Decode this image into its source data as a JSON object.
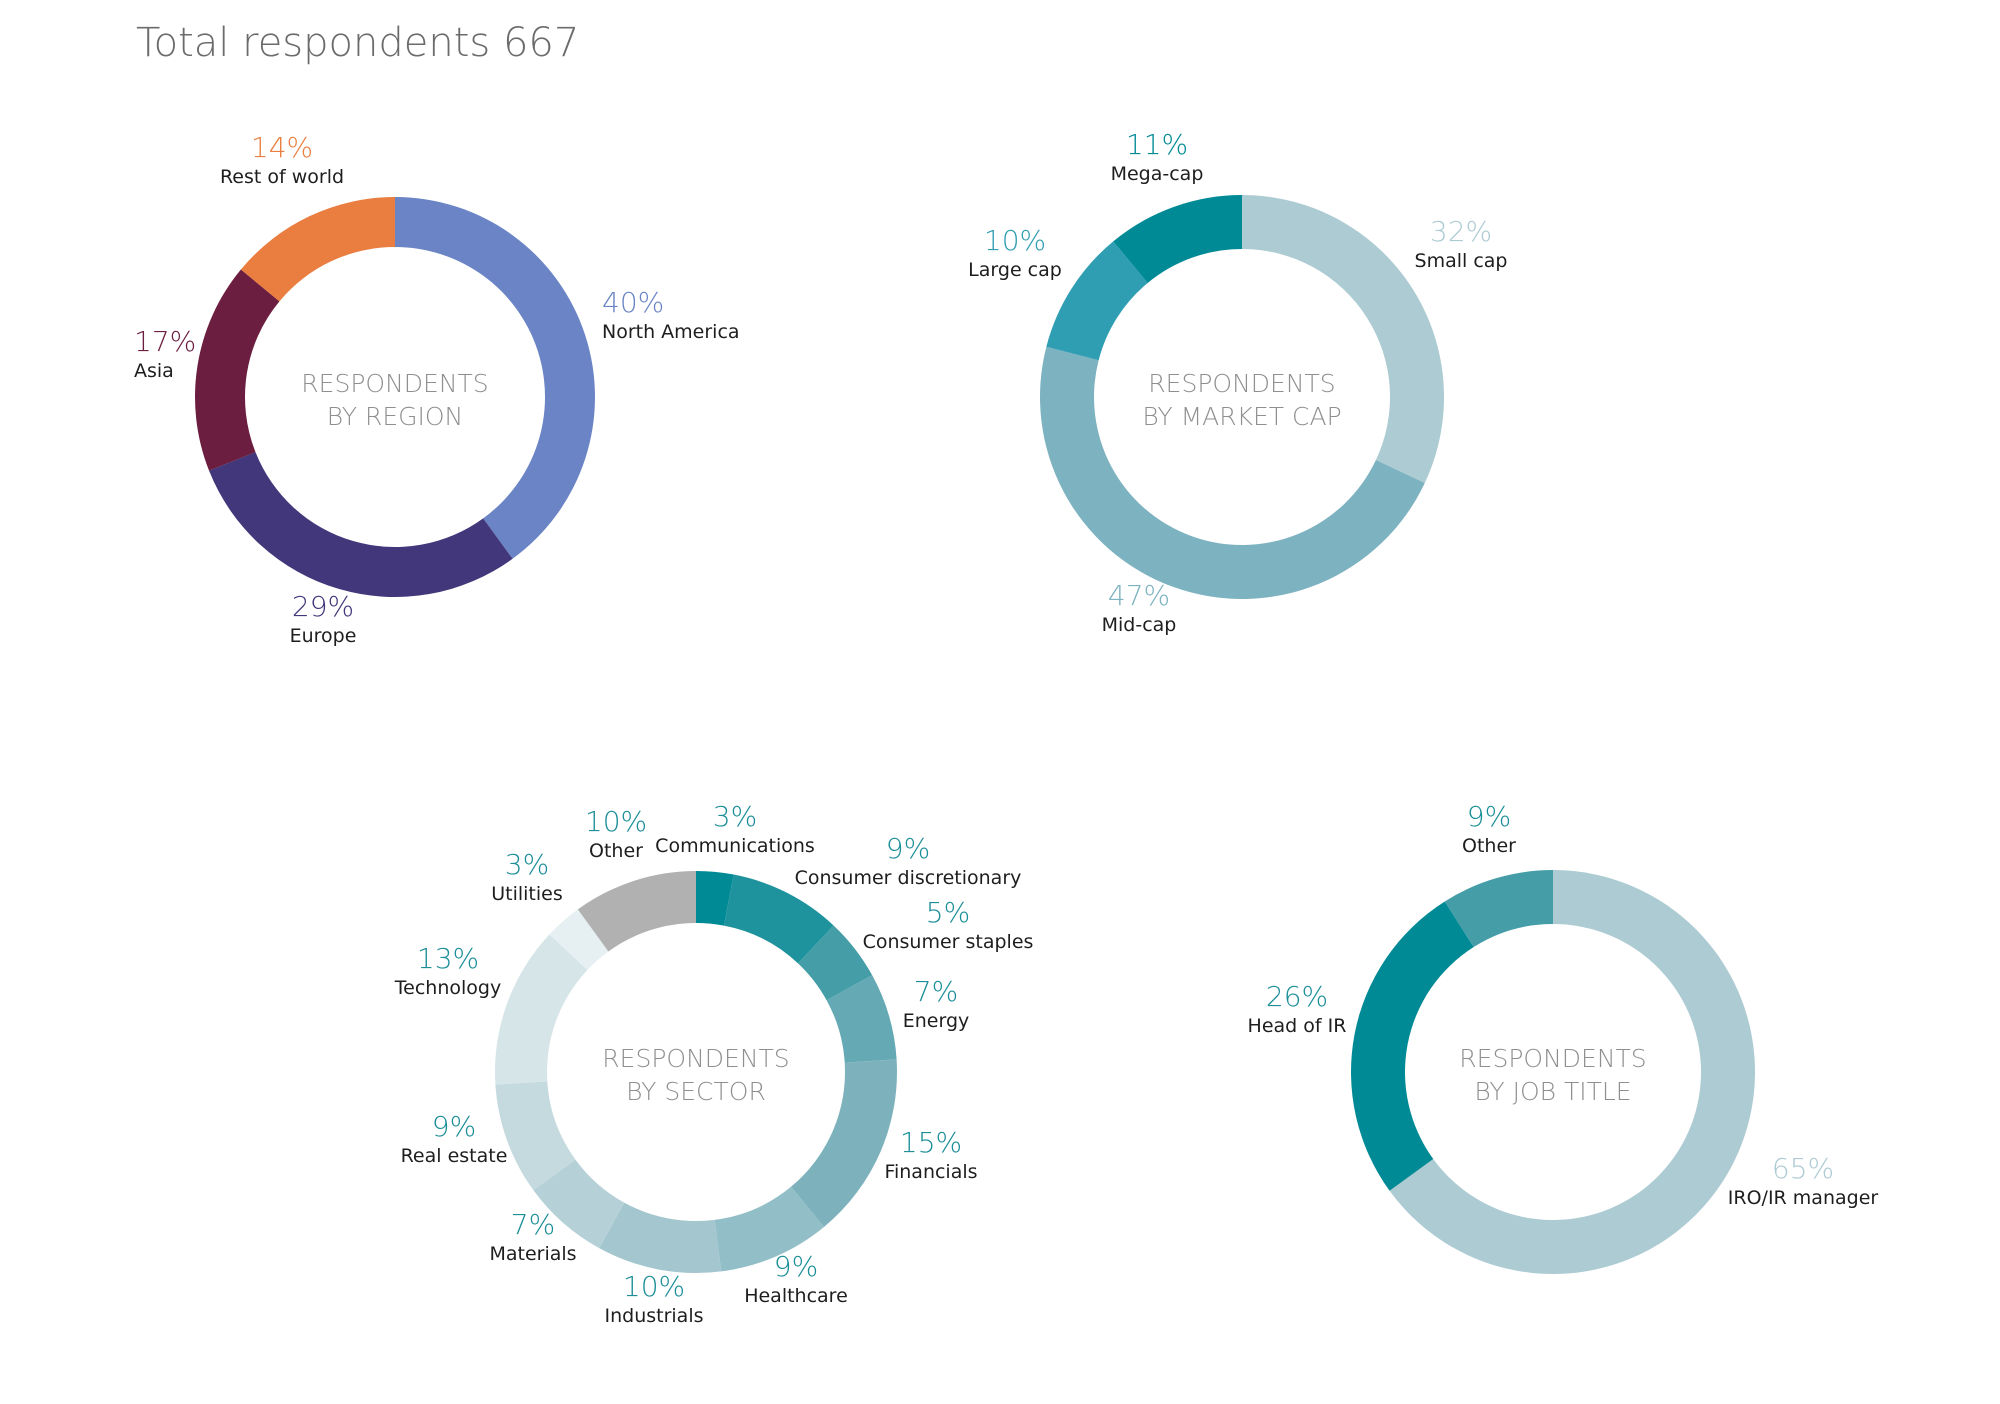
{
  "title": "Total respondents 667",
  "chart_data": [
    {
      "type": "pie",
      "title": "RESPONDENTS BY REGION",
      "center_lines": [
        "RESPONDENTS",
        "BY REGION"
      ],
      "slices": [
        {
          "label": "North America",
          "value": 40,
          "pct": "40%",
          "color": "#6a84c5",
          "pct_color": "#6a84c5"
        },
        {
          "label": "Europe",
          "value": 29,
          "pct": "29%",
          "color": "#41377a",
          "pct_color": "#41377a"
        },
        {
          "label": "Asia",
          "value": 17,
          "pct": "17%",
          "color": "#6b1e40",
          "pct_color": "#6b1e40"
        },
        {
          "label": "Rest of world",
          "value": 14,
          "pct": "14%",
          "color": "#e97e40",
          "pct_color": "#e97e40"
        }
      ]
    },
    {
      "type": "pie",
      "title": "RESPONDENTS BY MARKET CAP",
      "center_lines": [
        "RESPONDENTS",
        "BY MARKET CAP"
      ],
      "slices": [
        {
          "label": "Small cap",
          "value": 32,
          "pct": "32%",
          "color": "#adcbd3",
          "pct_color": "#adcbd3"
        },
        {
          "label": "Mid-cap",
          "value": 47,
          "pct": "47%",
          "color": "#7db2c0",
          "pct_color": "#7db2c0"
        },
        {
          "label": "Large cap",
          "value": 10,
          "pct": "10%",
          "color": "#2f9db2",
          "pct_color": "#2f9db2"
        },
        {
          "label": "Mega-cap",
          "value": 11,
          "pct": "11%",
          "color": "#008a96",
          "pct_color": "#008a96"
        }
      ]
    },
    {
      "type": "pie",
      "title": "RESPONDENTS BY SECTOR",
      "center_lines": [
        "RESPONDENTS",
        "BY SECTOR"
      ],
      "slices": [
        {
          "label": "Communications",
          "value": 3,
          "pct": "3%",
          "color": "#008a96",
          "pct_color": "#1b8e98"
        },
        {
          "label": "Consumer discretionary",
          "value": 9,
          "pct": "9%",
          "color": "#1e939d",
          "pct_color": "#1b8e98"
        },
        {
          "label": "Consumer staples",
          "value": 5,
          "pct": "5%",
          "color": "#459ea7",
          "pct_color": "#1b8e98"
        },
        {
          "label": "Energy",
          "value": 7,
          "pct": "7%",
          "color": "#64a9b3",
          "pct_color": "#1b8e98"
        },
        {
          "label": "Financials",
          "value": 15,
          "pct": "15%",
          "color": "#7db2bd",
          "pct_color": "#1b8e98"
        },
        {
          "label": "Healthcare",
          "value": 9,
          "pct": "9%",
          "color": "#92bec7",
          "pct_color": "#1b8e98"
        },
        {
          "label": "Industrials",
          "value": 10,
          "pct": "10%",
          "color": "#a4c7cf",
          "pct_color": "#1b8e98"
        },
        {
          "label": "Materials",
          "value": 7,
          "pct": "7%",
          "color": "#b5d1d7",
          "pct_color": "#1b8e98"
        },
        {
          "label": "Real estate",
          "value": 9,
          "pct": "9%",
          "color": "#c5dadf",
          "pct_color": "#1b8e98"
        },
        {
          "label": "Technology",
          "value": 13,
          "pct": "13%",
          "color": "#d6e5e8",
          "pct_color": "#1b8e98"
        },
        {
          "label": "Utilities",
          "value": 3,
          "pct": "3%",
          "color": "#e6eff1",
          "pct_color": "#1b8e98"
        },
        {
          "label": "Other",
          "value": 10,
          "pct": "10%",
          "color": "#b1b1b1",
          "pct_color": "#1b8e98"
        }
      ]
    },
    {
      "type": "pie",
      "title": "RESPONDENTS BY JOB TITLE",
      "center_lines": [
        "RESPONDENTS",
        "BY JOB TITLE"
      ],
      "slices": [
        {
          "label": "IRO/IR manager",
          "value": 65,
          "pct": "65%",
          "color": "#adcbd3",
          "pct_color": "#adcbd3"
        },
        {
          "label": "Head of IR",
          "value": 26,
          "pct": "26%",
          "color": "#008a96",
          "pct_color": "#1b8e98"
        },
        {
          "label": "Other",
          "value": 9,
          "pct": "9%",
          "color": "#459ea7",
          "pct_color": "#1b8e98"
        }
      ]
    }
  ]
}
